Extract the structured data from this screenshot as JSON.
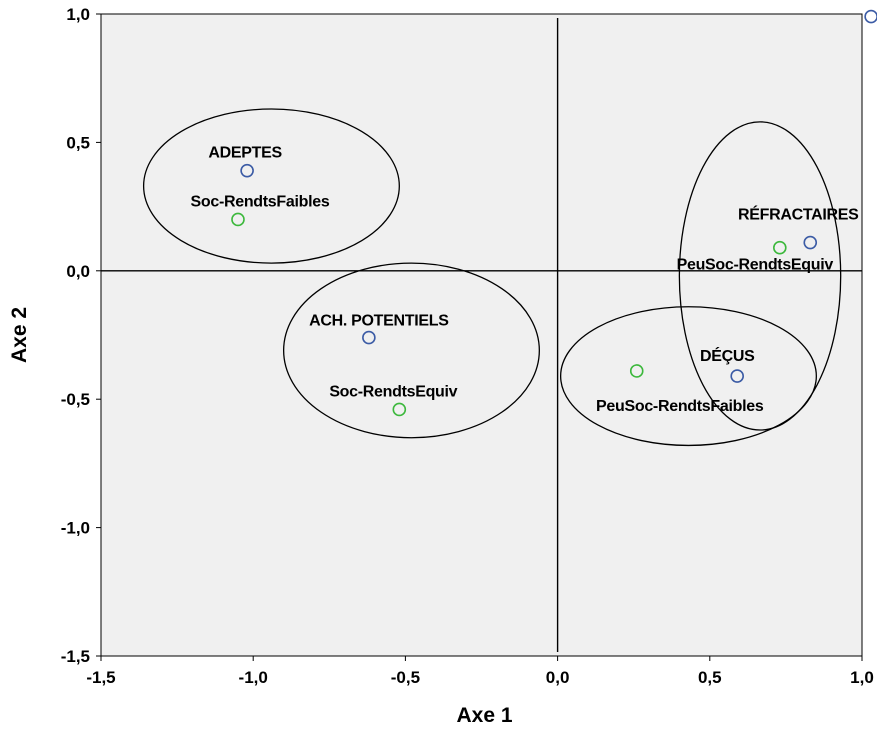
{
  "chart_data": {
    "type": "scatter",
    "title": "",
    "xlabel": "Axe 1",
    "ylabel": "Axe 2",
    "xlim": [
      -1.5,
      1.0
    ],
    "ylim": [
      -1.5,
      1.0
    ],
    "x_ticks": [
      {
        "value": -1.5,
        "label": "-1,5"
      },
      {
        "value": -1.0,
        "label": "-1,0"
      },
      {
        "value": -0.5,
        "label": "-0,5"
      },
      {
        "value": 0.0,
        "label": "0,0"
      },
      {
        "value": 0.5,
        "label": "0,5"
      },
      {
        "value": 1.0,
        "label": "1,0"
      }
    ],
    "y_ticks": [
      {
        "value": 1.0,
        "label": "1,0"
      },
      {
        "value": 0.5,
        "label": "0,5"
      },
      {
        "value": 0.0,
        "label": "0,0"
      },
      {
        "value": -0.5,
        "label": "-0,5"
      },
      {
        "value": -1.0,
        "label": "-1,0"
      },
      {
        "value": -1.5,
        "label": "-1,5"
      }
    ],
    "grid": false,
    "reference_lines": {
      "x": 0.0,
      "y": 0.0
    },
    "plot_background": "#f0f0f0",
    "series": [
      {
        "color": "#3b5ba5",
        "points": [
          {
            "label": "ADEPTES",
            "x": -1.02,
            "y": 0.39
          },
          {
            "label": "ACH. POTENTIELS",
            "x": -0.62,
            "y": -0.26
          },
          {
            "label": "DÉÇUS",
            "x": 0.59,
            "y": -0.41
          },
          {
            "label": "RÉFRACTAIRES",
            "x": 0.83,
            "y": 0.11
          },
          {
            "label": "",
            "x": 1.03,
            "y": 0.99
          }
        ]
      },
      {
        "color": "#3cb83c",
        "points": [
          {
            "label": "Soc-RendtsFaibles",
            "x": -1.05,
            "y": 0.2
          },
          {
            "label": "Soc-RendtsEquiv",
            "x": -0.52,
            "y": -0.54
          },
          {
            "label": "PeuSoc-RendtsFaibles",
            "x": 0.26,
            "y": -0.39
          },
          {
            "label": "PeuSoc-RendtsEquiv",
            "x": 0.73,
            "y": 0.09
          }
        ]
      }
    ],
    "groupings": [
      {
        "cx": -0.94,
        "cy": 0.33,
        "rx": 0.42,
        "ry": 0.3,
        "members": [
          "ADEPTES",
          "Soc-RendtsFaibles"
        ]
      },
      {
        "cx": -0.48,
        "cy": -0.31,
        "rx": 0.42,
        "ry": 0.34,
        "members": [
          "ACH. POTENTIELS",
          "Soc-RendtsEquiv"
        ]
      },
      {
        "cx": 0.43,
        "cy": -0.41,
        "rx": 0.42,
        "ry": 0.27,
        "members": [
          "DÉÇUS",
          "PeuSoc-RendtsFaibles"
        ]
      },
      {
        "cx": 0.665,
        "cy": -0.02,
        "rx": 0.265,
        "ry": 0.6,
        "members": [
          "RÉFRACTAIRES",
          "PeuSoc-RendtsEquiv"
        ]
      }
    ]
  }
}
